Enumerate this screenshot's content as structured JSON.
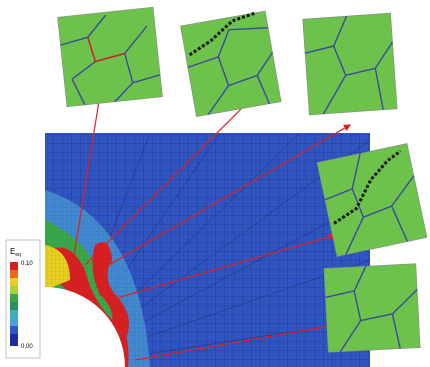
{
  "colorbar": {
    "label": "E",
    "label_sub": "eq",
    "max_label": "0.10",
    "min_label": "0.00"
  }
}
